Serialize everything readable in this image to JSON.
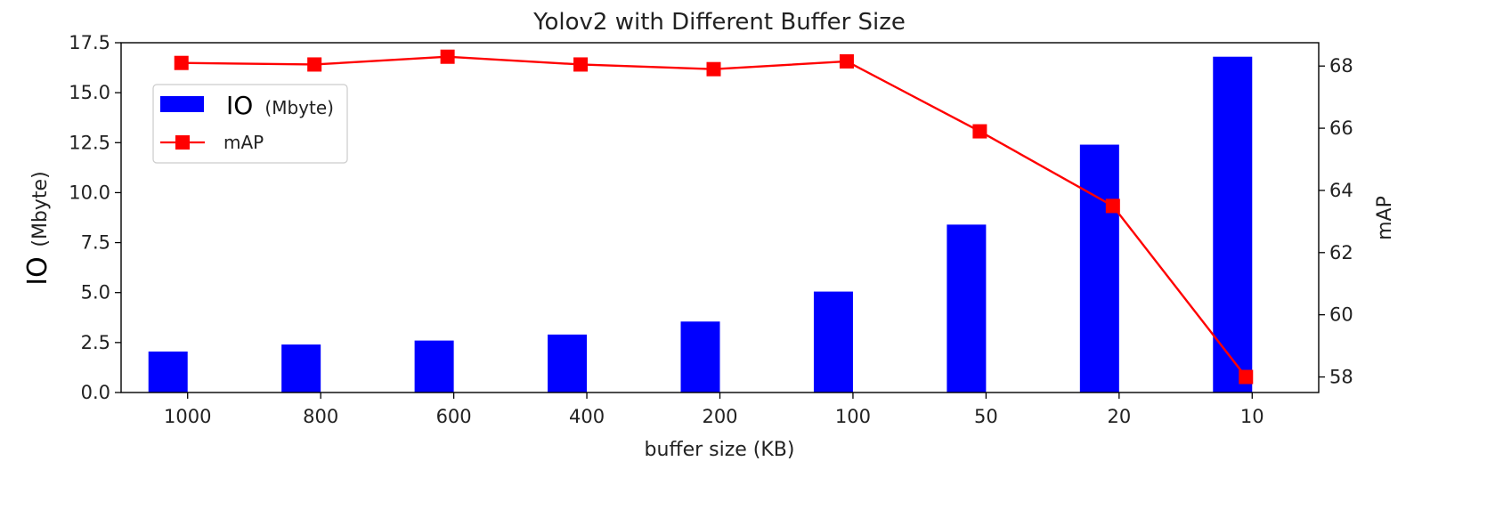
{
  "chart_data": {
    "type": "bar",
    "title": "Yolov2 with Different Buffer Size",
    "xlabel": "buffer size (KB)",
    "ylabel_prefix": "IO",
    "ylabel_unit": "(Mbyte)",
    "y2label": "mAP",
    "categories": [
      "1000",
      "800",
      "600",
      "400",
      "200",
      "100",
      "50",
      "20",
      "10"
    ],
    "ylim": [
      0,
      17.5
    ],
    "y_ticks": [
      "0.0",
      "2.5",
      "5.0",
      "7.5",
      "10.0",
      "12.5",
      "15.0",
      "17.5"
    ],
    "y2lim": [
      57.5,
      68.75
    ],
    "y2_ticks": [
      "58",
      "60",
      "62",
      "64",
      "66",
      "68"
    ],
    "series": [
      {
        "name": "IO (Mbyte)",
        "legend_prefix": "IO",
        "legend_unit": "(Mbyte)",
        "kind": "bar",
        "axis": "left",
        "color": "#0000ff",
        "values": [
          2.05,
          2.4,
          2.6,
          2.9,
          3.55,
          5.05,
          8.4,
          12.4,
          16.8
        ]
      },
      {
        "name": "mAP",
        "kind": "line",
        "axis": "right",
        "color": "#ff0000",
        "values": [
          68.1,
          68.05,
          68.3,
          68.05,
          67.9,
          68.15,
          65.9,
          63.5,
          58.0
        ]
      }
    ],
    "legend_position": "upper-left",
    "grid": false
  }
}
